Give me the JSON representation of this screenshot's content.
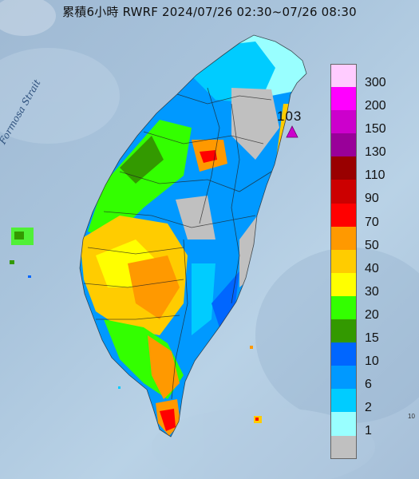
{
  "title": "累積6小時 RWRF 2024/07/26 02:30~07/26 08:30",
  "strait_label": "Formosa Strait",
  "max_value_label": "103",
  "edge_label": "10",
  "legend": [
    {
      "label": "300",
      "color": "#ffccff"
    },
    {
      "label": "200",
      "color": "#ff00ff"
    },
    {
      "label": "150",
      "color": "#cc00cc"
    },
    {
      "label": "130",
      "color": "#990099"
    },
    {
      "label": "110",
      "color": "#990000"
    },
    {
      "label": "90",
      "color": "#cc0000"
    },
    {
      "label": "70",
      "color": "#ff0000"
    },
    {
      "label": "50",
      "color": "#ff9900"
    },
    {
      "label": "40",
      "color": "#ffcc00"
    },
    {
      "label": "30",
      "color": "#ffff00"
    },
    {
      "label": "20",
      "color": "#33ff00"
    },
    {
      "label": "15",
      "color": "#339900"
    },
    {
      "label": "10",
      "color": "#0066ff"
    },
    {
      "label": "6",
      "color": "#0099ff"
    },
    {
      "label": "2",
      "color": "#00ccff"
    },
    {
      "label": "1",
      "color": "#99ffff"
    },
    {
      "label": "",
      "color": "#c0c0c0"
    }
  ]
}
